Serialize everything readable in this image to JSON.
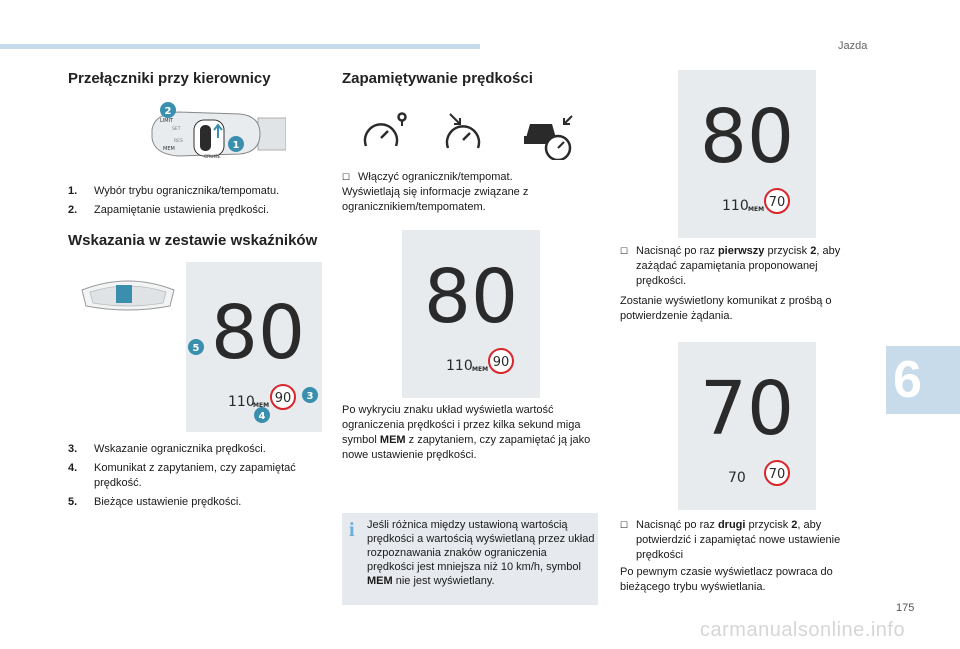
{
  "header": {
    "section": "Jazda",
    "tab_number": "6",
    "page_number": "175",
    "footer": "carmanualsonline.info"
  },
  "col1": {
    "title1": "Przełączniki przy kierownicy",
    "list1": [
      {
        "n": "1.",
        "t": "Wybór trybu ogranicznika/tempomatu."
      },
      {
        "n": "2.",
        "t": "Zapamiętanie ustawienia prędkości."
      }
    ],
    "title2": "Wskazania w zestawie wskaźników",
    "list2": [
      {
        "n": "3.",
        "t": "Wskazanie ogranicznika prędkości."
      },
      {
        "n": "4.",
        "t": "Komunikat z zapytaniem, czy zapamiętać prędkość."
      },
      {
        "n": "5.",
        "t": "Bieżące ustawienie prędkości."
      }
    ],
    "stalk_labels": {
      "lim": "LIMIT",
      "cruise": "CRUISE",
      "mem": "MEM",
      "set": "SET",
      "res": "RES"
    },
    "cluster": {
      "speed": "80",
      "small": "110",
      "mem": "MEM",
      "circle": "90",
      "callouts": [
        "3",
        "4",
        "5"
      ]
    },
    "stalk_callouts": [
      "1",
      "2"
    ]
  },
  "col2": {
    "title": "Zapamiętywanie prędkości",
    "bullet1": "Włączyć ogranicznik/tempomat.",
    "para1": "Wyświetlają się informacje związane z ogranicznikiem/tempomatem.",
    "display": {
      "speed": "80",
      "small": "110",
      "mem": "MEM",
      "circle": "90"
    },
    "para2_a": "Po wykryciu znaku układ wyświetla wartość ograniczenia prędkości i przez kilka sekund miga symbol ",
    "para2_b": "MEM",
    "para2_c": " z zapytaniem, czy zapamiętać ją jako nowe ustawienie prędkości.",
    "note_a": "Jeśli różnica między ustawioną wartością prędkości a wartością wyświetlaną przez układ rozpoznawania znaków ograniczenia prędkości jest mniejsza niż 10 km/h, symbol ",
    "note_b": "MEM",
    "note_c": " nie jest wyświetlany."
  },
  "col3": {
    "display1": {
      "speed": "80",
      "small": "110",
      "mem": "MEM",
      "circle": "70"
    },
    "b1_a": "Nacisnąć po raz ",
    "b1_b": "pierwszy",
    "b1_c": " przycisk ",
    "b1_d": "2",
    "b1_e": ", aby zażądać zapamiętania proponowanej prędkości.",
    "para1": "Zostanie wyświetlony komunikat z prośbą o potwierdzenie żądania.",
    "display2": {
      "speed": "70",
      "small": "70",
      "circle": "70"
    },
    "b2_a": "Nacisnąć po raz ",
    "b2_b": "drugi",
    "b2_c": " przycisk ",
    "b2_d": "2",
    "b2_e": ", aby potwierdzić i zapamiętać nowe ustawienie prędkości",
    "para2": "Po pewnym czasie wyświetlacz powraca do bieżącego trybu wyświetlania."
  },
  "colors": {
    "accent": "#6aafd9",
    "red": "#d9262c",
    "panel": "#e7ebee",
    "teal": "#3a8fae",
    "tab": "#c7dbea"
  }
}
